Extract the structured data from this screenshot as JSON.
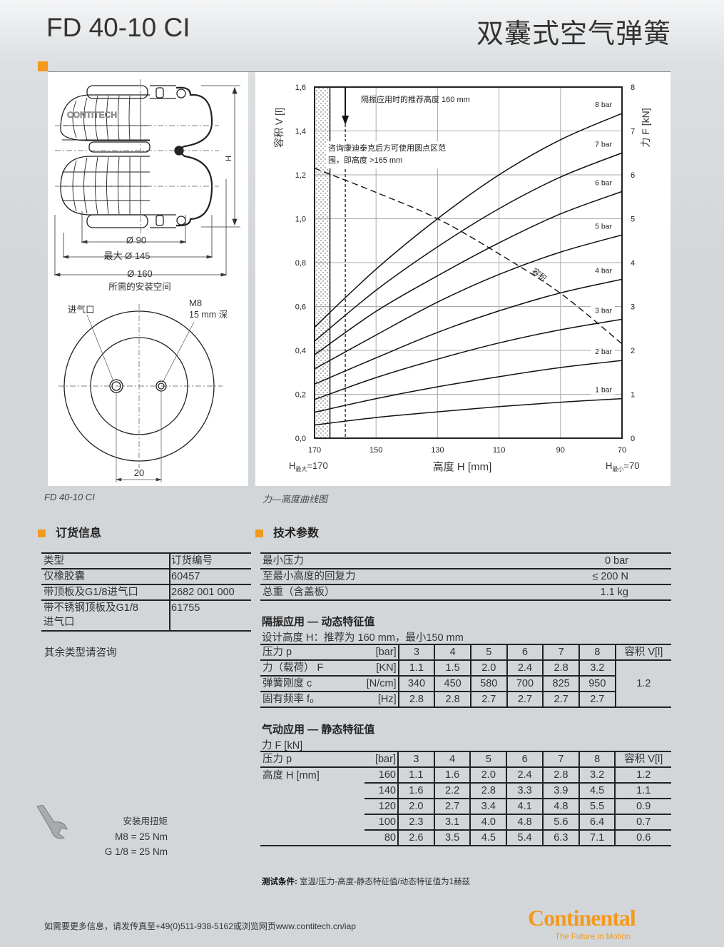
{
  "header": {
    "title": "FD 40-10 CI",
    "title_cn": "双囊式空气弹簧",
    "accent_color": "#f39a1e"
  },
  "drawing": {
    "brand_mark": "CONTITECH",
    "dim_h": "H",
    "dim_d90": "Ø 90",
    "dim_dmax": "最大 Ø 145",
    "dim_d160": "Ø 160",
    "install_space": "所需的安装空间",
    "inlet": "进气口",
    "m8": "M8",
    "m8_depth": "15 mm 深",
    "dim_20": "20",
    "caption": "FD 40-10 CI"
  },
  "chart_data": {
    "type": "line",
    "caption": "力—高度曲线图",
    "xlabel": "高度 H [mm]",
    "ylabel_left": "容积 V [l]",
    "ylabel_right": "力 F [kN]",
    "x_min_label": "H",
    "x_min_sub": "最大",
    "x_min_val": "=170",
    "x_max_label": "H",
    "x_max_sub": "最小",
    "x_max_val": "=70",
    "xlim": [
      170,
      70
    ],
    "ylim_left": [
      0,
      1.6
    ],
    "ylim_right": [
      0,
      8
    ],
    "xticks": [
      "170",
      "150",
      "130",
      "110",
      "90",
      "70"
    ],
    "yticks_left": [
      "0,0",
      "0,2",
      "0,4",
      "0,6",
      "0,8",
      "1,0",
      "1,2",
      "1,4",
      "1,6"
    ],
    "yticks_right": [
      "0",
      "1",
      "2",
      "3",
      "4",
      "5",
      "6",
      "7",
      "8"
    ],
    "grid": true,
    "x": [
      170,
      150,
      130,
      110,
      90,
      70
    ],
    "series": [
      {
        "name": "1 bar",
        "values": [
          0.3,
          0.47,
          0.6,
          0.72,
          0.82,
          0.9
        ]
      },
      {
        "name": "2 bar",
        "values": [
          0.59,
          0.9,
          1.17,
          1.4,
          1.61,
          1.77
        ]
      },
      {
        "name": "3 bar",
        "values": [
          0.88,
          1.38,
          1.8,
          2.17,
          2.47,
          2.71
        ]
      },
      {
        "name": "4 bar",
        "values": [
          1.23,
          1.83,
          2.41,
          2.9,
          3.31,
          3.62
        ]
      },
      {
        "name": "5 bar",
        "values": [
          1.58,
          2.35,
          3.1,
          3.73,
          4.24,
          4.63
        ]
      },
      {
        "name": "6 bar",
        "values": [
          1.9,
          2.89,
          3.7,
          4.45,
          5.11,
          5.62
        ]
      },
      {
        "name": "7 bar",
        "values": [
          2.21,
          3.37,
          4.36,
          5.23,
          5.95,
          6.5
        ]
      },
      {
        "name": "8 bar",
        "values": [
          2.53,
          3.85,
          5.0,
          6.0,
          6.8,
          7.4
        ]
      }
    ],
    "volume": {
      "name": "容积",
      "values": [
        1.23,
        1.12,
        1.0,
        0.84,
        0.66,
        0.43
      ]
    },
    "recommended_height": 160,
    "recommended_note": "隔振应用时的推荐高度  160 mm",
    "dotted_zone_limit": 165,
    "dotted_zone_note_1": "咨询康迪泰克后方可使用圆点区范",
    "dotted_zone_note_2": "围，即高度  >165 mm"
  },
  "order": {
    "heading": "订货信息",
    "headers": [
      "类型",
      "订货编号"
    ],
    "rows": [
      [
        "仅橡胶囊",
        "60457"
      ],
      [
        "带顶板及G1/8进气口",
        "2682 001 000"
      ],
      [
        "带不锈钢顶板及G1/8",
        "61755"
      ]
    ],
    "row3_cont": "进气口",
    "note": "其余类型请咨询"
  },
  "tech": {
    "heading": "技术参数",
    "basic": [
      [
        "最小压力",
        "0 bar"
      ],
      [
        "至最小高度的回复力",
        "≤ 200 N"
      ],
      [
        "总重（含盖板）",
        "1.1 kg"
      ]
    ],
    "dynamic": {
      "title": "隔振应用 — 动态特征值",
      "subtitle": "设计高度 H：推荐为 160 mm，最小150 mm",
      "header": [
        "压力 p",
        "[bar]",
        "3",
        "4",
        "5",
        "6",
        "7",
        "8",
        "容积 V[l]"
      ],
      "rows": [
        [
          "力（载荷） F",
          "[KN]",
          "1.1",
          "1.5",
          "2.0",
          "2.4",
          "2.8",
          "3.2"
        ],
        [
          "弹簧刚度 c",
          "[N/cm]",
          "340",
          "450",
          "580",
          "700",
          "825",
          "950"
        ],
        [
          "固有频率 f₀",
          "[Hz]",
          "2.8",
          "2.8",
          "2.7",
          "2.7",
          "2.7",
          "2.7"
        ]
      ],
      "volume": "1.2"
    },
    "static": {
      "title": "气动应用 — 静态特征值",
      "subtitle": "力 F [kN]",
      "header": [
        "压力 p",
        "[bar]",
        "3",
        "4",
        "5",
        "6",
        "7",
        "8",
        "容积 V[l]"
      ],
      "row_label": "高度 H [mm]",
      "rows": [
        [
          "160",
          "1.1",
          "1.6",
          "2.0",
          "2.4",
          "2.8",
          "3.2",
          "1.2"
        ],
        [
          "140",
          "1.6",
          "2.2",
          "2.8",
          "3.3",
          "3.9",
          "4.5",
          "1.1"
        ],
        [
          "120",
          "2.0",
          "2.7",
          "3.4",
          "4.1",
          "4.8",
          "5.5",
          "0.9"
        ],
        [
          "100",
          "2.3",
          "3.1",
          "4.0",
          "4.8",
          "5.6",
          "6.4",
          "0.7"
        ],
        [
          "80",
          "2.6",
          "3.5",
          "4.5",
          "5.4",
          "6.3",
          "7.1",
          "0.6"
        ]
      ]
    }
  },
  "torque": {
    "title": "安装用扭矩",
    "m8": "M8 = 25  Nm",
    "g18": "G 1/8 = 25  Nm",
    "icon": "wrench-icon"
  },
  "test_conditions": {
    "label": "测试条件:",
    "text": " 室温/压力-高度-静态特征值/动态特征值为1赫兹"
  },
  "footer": {
    "text": "如需要更多信息，请发传真至+49(0)511-938-5162或浏览网页www.contitech.cn/iap"
  },
  "brand": {
    "logo": "Continental",
    "slogan": "The Future in Motion"
  }
}
